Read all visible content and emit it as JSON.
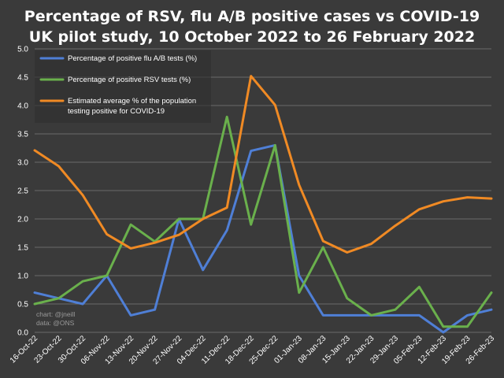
{
  "title_line1": "Percentage of RSV, flu A/B positive cases vs COVID-19",
  "title_line2": "UK pilot study, 10 October 2022 to 26 February 2022",
  "credit_chart": "chart: @jneill",
  "credit_data": "data: @ONS",
  "colors": {
    "background": "#3a3a3a",
    "grid": "#6a6a6a",
    "flu": "#4f7fd6",
    "rsv": "#6ab04c",
    "covid": "#f08a24"
  },
  "chart_data": {
    "type": "line",
    "title": "Percentage of RSV, flu A/B positive cases vs COVID-19 UK pilot study, 10 October 2022 to 26 February 2022",
    "xlabel": "",
    "ylabel": "",
    "ylim": [
      0,
      5
    ],
    "yticks": [
      "0.0",
      "0.5",
      "1.0",
      "1.5",
      "2.0",
      "2.5",
      "3.0",
      "3.5",
      "4.0",
      "4.5",
      "5.0"
    ],
    "grid": true,
    "legend_position": "top-left",
    "categories": [
      "16-Oct-22",
      "23-Oct-22",
      "30-Oct-22",
      "06-Nov-22",
      "13-Nov-22",
      "20-Nov-22",
      "27-Nov-22",
      "04-Dec-22",
      "11-Dec-22",
      "18-Dec-22",
      "25-Dec-22",
      "01-Jan-23",
      "08-Jan-23",
      "15-Jan-23",
      "22-Jan-23",
      "29-Jan-23",
      "05-Feb-23",
      "12-Feb-23",
      "19-Feb-23",
      "26-Feb-23"
    ],
    "series": [
      {
        "name": "Percentage of positive flu A/B tests (%)",
        "color": "#4f7fd6",
        "values": [
          0.7,
          0.6,
          0.5,
          1.0,
          0.3,
          0.4,
          2.0,
          1.1,
          1.8,
          3.2,
          3.3,
          1.0,
          0.3,
          0.3,
          0.3,
          0.3,
          0.3,
          0.0,
          0.3,
          0.4
        ]
      },
      {
        "name": "Percentage of positive RSV tests (%)",
        "color": "#6ab04c",
        "values": [
          0.5,
          0.6,
          0.9,
          1.0,
          1.9,
          1.6,
          2.0,
          2.0,
          3.8,
          1.9,
          3.3,
          0.7,
          1.5,
          0.6,
          0.3,
          0.4,
          0.8,
          0.1,
          0.1,
          0.7
        ]
      },
      {
        "name": "Estimated average % of the population testing positive for COVID-19",
        "legend_lines": [
          "Estimated average % of the population",
          "testing positive for COVID-19"
        ],
        "color": "#f08a24",
        "values": [
          3.21,
          2.93,
          2.42,
          1.73,
          1.48,
          1.58,
          1.72,
          2.0,
          2.2,
          4.52,
          4.01,
          2.6,
          1.61,
          1.41,
          1.56,
          1.88,
          2.17,
          2.31,
          2.38,
          2.36
        ]
      }
    ]
  }
}
